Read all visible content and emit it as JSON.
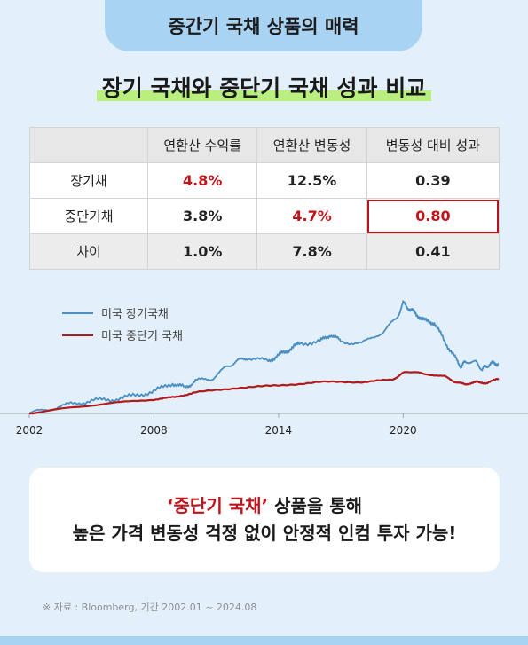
{
  "header": {
    "title": "중간기 국채 상품의 매력"
  },
  "subtitle": "장기 국채와 중단기 국채 성과 비교",
  "table": {
    "headers": [
      "",
      "연환산 수익률",
      "연환산 변동성",
      "변동성 대비 성과"
    ],
    "rows": [
      {
        "label": "장기채",
        "values": [
          "4.8%",
          "12.5%",
          "0.39"
        ]
      },
      {
        "label": "중단기채",
        "values": [
          "3.8%",
          "4.7%",
          "0.80"
        ]
      },
      {
        "label": "차이",
        "values": [
          "1.0%",
          "7.8%",
          "0.41"
        ]
      }
    ],
    "highlight_color": "#c0141b"
  },
  "chart_data": {
    "type": "line",
    "title": "",
    "xlabel": "",
    "ylabel": "",
    "xlim": [
      2002,
      2024.6
    ],
    "ylim": [
      0,
      100
    ],
    "y_axis_visible": false,
    "grid": false,
    "legend_position": "top-left",
    "x_ticks": [
      "2002",
      "2008",
      "2014",
      "2020"
    ],
    "series": [
      {
        "name": "미국 장기국채",
        "color": "#4a8ec4",
        "x": [
          2002,
          2003,
          2004,
          2005,
          2006,
          2007,
          2008,
          2008.9,
          2009.5,
          2010,
          2010.8,
          2011.5,
          2012,
          2012.5,
          2013.5,
          2014,
          2014.5,
          2015,
          2016,
          2016.5,
          2017,
          2018,
          2019,
          2019.7,
          2020,
          2020.3,
          2020.6,
          2021,
          2021.5,
          2022,
          2022.5,
          2022.8,
          2023,
          2023.5,
          2023.8,
          2024,
          2024.3,
          2024.6
        ],
        "y": [
          0,
          4,
          8,
          11,
          12,
          15,
          19,
          26,
          22,
          28,
          30,
          40,
          45,
          48,
          45,
          50,
          55,
          60,
          62,
          68,
          62,
          60,
          70,
          82,
          95,
          90,
          86,
          80,
          78,
          62,
          48,
          40,
          45,
          44,
          38,
          41,
          43,
          43
        ]
      },
      {
        "name": "미국 중단기 국채",
        "color": "#b11a1c",
        "x": [
          2002,
          2004,
          2006,
          2008,
          2009,
          2010,
          2012,
          2014,
          2016,
          2018,
          2019.5,
          2020,
          2020.5,
          2021,
          2022,
          2022.5,
          2023,
          2023.5,
          2024,
          2024.6
        ],
        "y": [
          0,
          5,
          9,
          12,
          14,
          18,
          22,
          24,
          27,
          27,
          29,
          35,
          36,
          34,
          32,
          27,
          25,
          27,
          26,
          30
        ]
      }
    ]
  },
  "message": {
    "highlight": "‘중단기 국채’",
    "line1_rest": " 상품을 통해",
    "line2": "높은 가격 변동성 걱정 없이 안정적 인컴 투자 가능!"
  },
  "source": "※ 자료 : Bloomberg, 기간 2002.01 ~ 2024.08"
}
